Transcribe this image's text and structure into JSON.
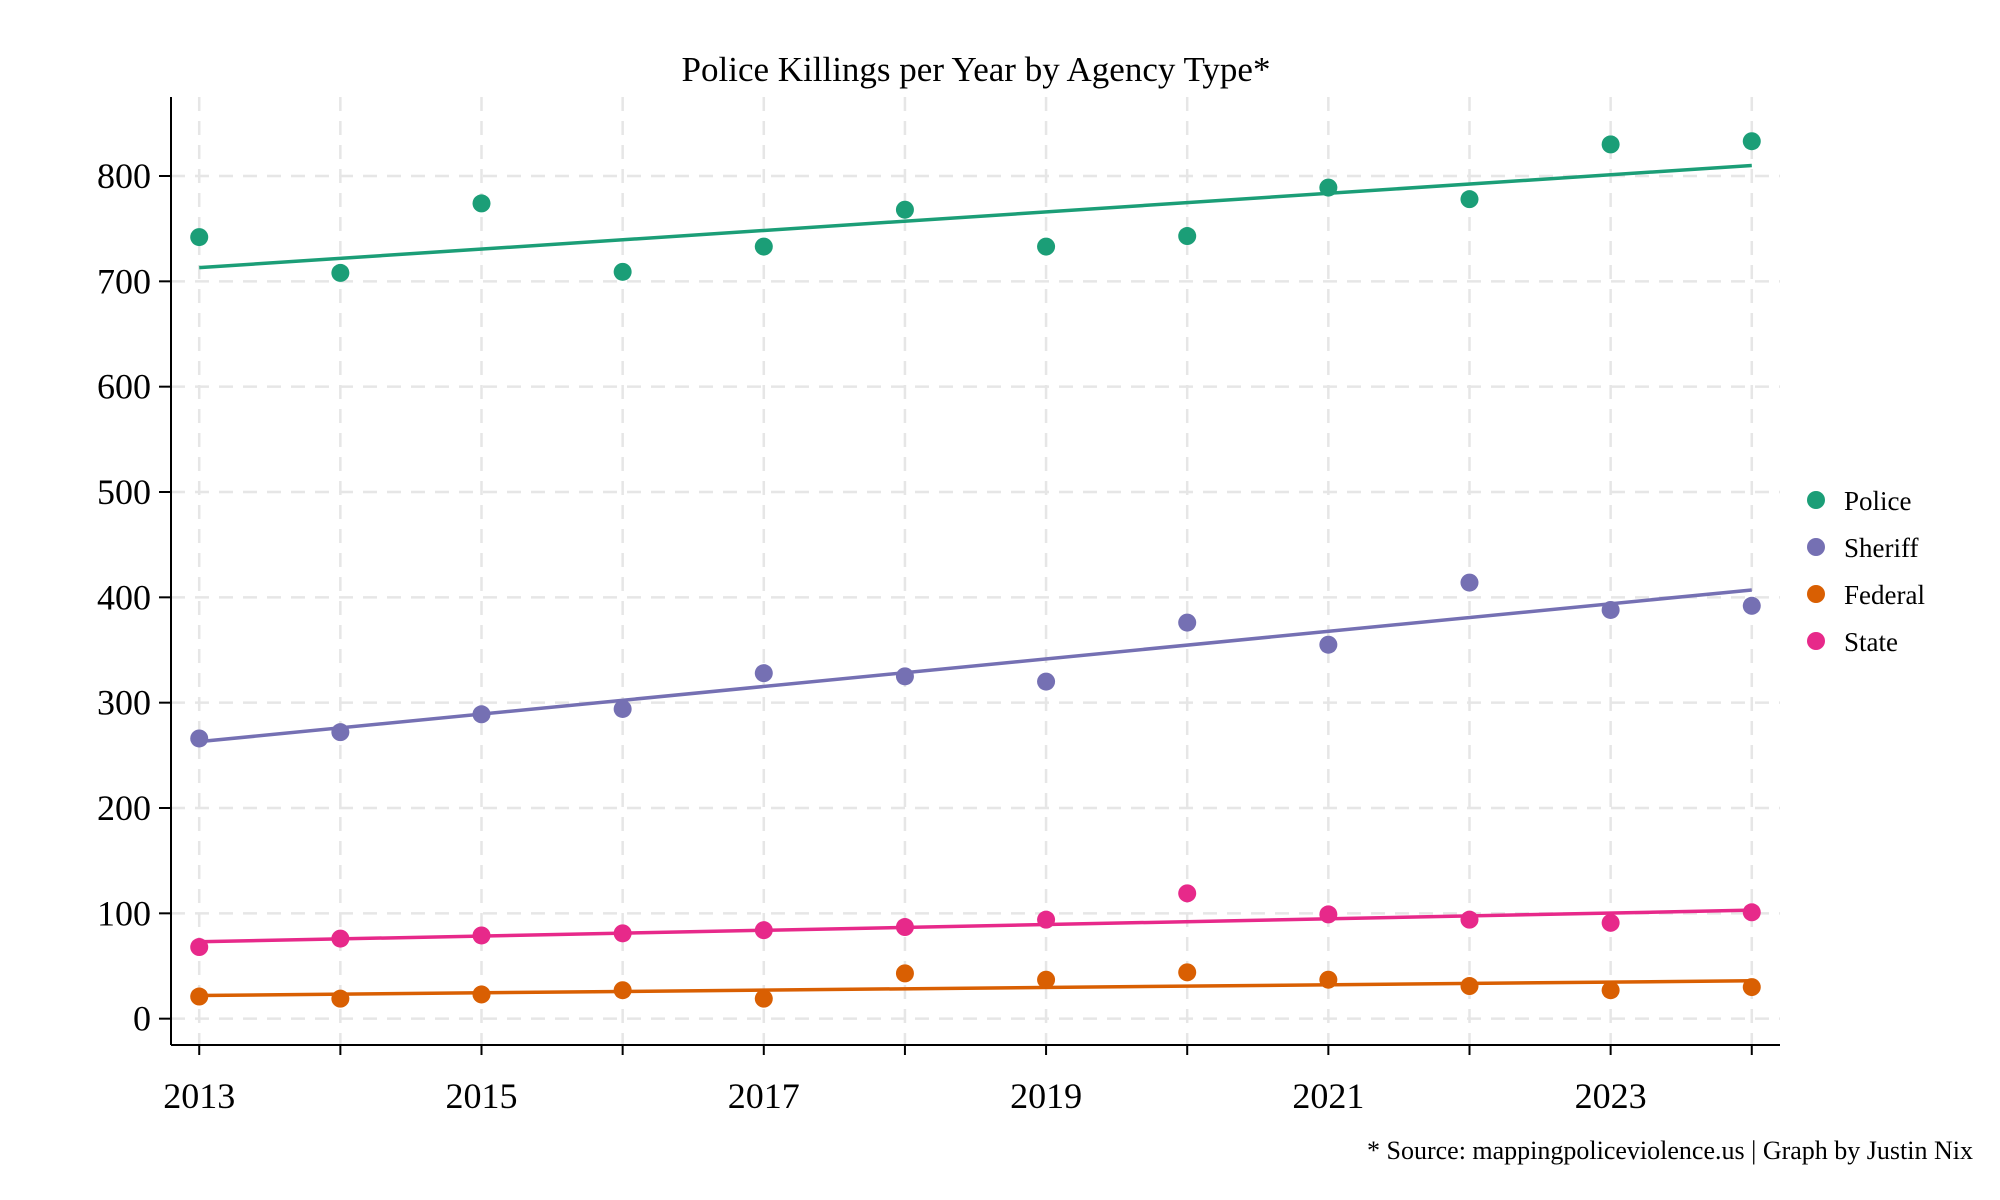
{
  "chart_data": {
    "type": "scatter",
    "title": "Police Killings per Year by Agency Type*",
    "xlabel": "",
    "ylabel": "",
    "note": "* Source: mappingpoliceviolence.us | Graph by Justin Nix",
    "x": [
      2013,
      2014,
      2015,
      2016,
      2017,
      2018,
      2019,
      2020,
      2021,
      2022,
      2023,
      2024
    ],
    "xlim": [
      2012.8,
      2024.2
    ],
    "ylim": [
      -25,
      875
    ],
    "xticks": [
      2013,
      2015,
      2017,
      2019,
      2021,
      2023
    ],
    "yticks": [
      0,
      100,
      200,
      300,
      400,
      500,
      600,
      700,
      800
    ],
    "grid": true,
    "legend_position": "right",
    "series": [
      {
        "name": "Police",
        "color": "#1b9e77",
        "values": [
          742,
          708,
          774,
          709,
          733,
          768,
          733,
          743,
          789,
          778,
          830,
          833
        ],
        "trend": [
          713,
          810
        ]
      },
      {
        "name": "Sheriff",
        "color": "#7570b3",
        "values": [
          266,
          272,
          289,
          294,
          328,
          325,
          320,
          376,
          355,
          414,
          388,
          392
        ],
        "trend": [
          263,
          407
        ]
      },
      {
        "name": "Federal",
        "color": "#d95f02",
        "values": [
          21,
          19,
          23,
          27,
          19,
          43,
          37,
          44,
          37,
          31,
          27,
          30
        ],
        "trend": [
          22,
          36
        ]
      },
      {
        "name": "State",
        "color": "#e7298a",
        "values": [
          68,
          76,
          79,
          81,
          84,
          87,
          94,
          119,
          99,
          94,
          91,
          101
        ],
        "trend": [
          73,
          103
        ]
      }
    ]
  }
}
